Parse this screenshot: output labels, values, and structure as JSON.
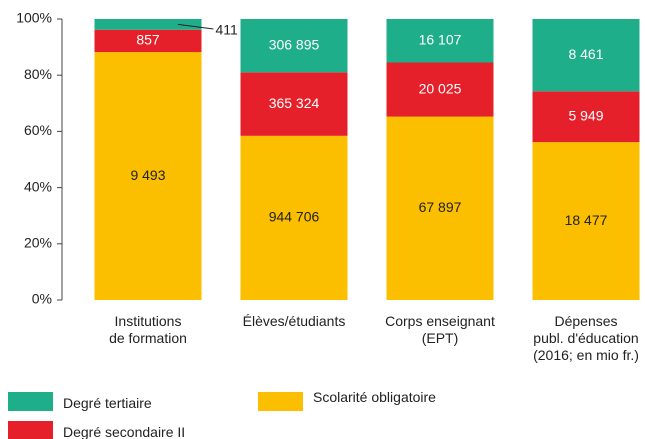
{
  "chart_data": {
    "type": "bar",
    "stacked": "percent",
    "categories": [
      "Institutions\nde formation",
      "Élèves/étudiants",
      "Corps enseignant\n(EPT)",
      "Dépenses\npubl. d'éducation\n(2016; en mio fr.)"
    ],
    "series": [
      {
        "name": "Scolarité obligatoire",
        "color": "#fbbf00",
        "values": [
          9493,
          944706,
          67897,
          18477
        ],
        "value_labels": [
          "9 493",
          "944 706",
          "67 897",
          "18 477"
        ]
      },
      {
        "name": "Degré secondaire II",
        "color": "#e5202a",
        "values": [
          857,
          365324,
          20025,
          5949
        ],
        "value_labels": [
          "857",
          "365 324",
          "20 025",
          "5 949"
        ]
      },
      {
        "name": "Degré tertiaire",
        "color": "#1fae8a",
        "values": [
          411,
          306895,
          16107,
          8461
        ],
        "value_labels": [
          "411",
          "306 895",
          "16 107",
          "8 461"
        ]
      }
    ],
    "ylim": [
      0,
      100
    ],
    "yticks": [
      {
        "value": 0,
        "label": "0%"
      },
      {
        "value": 20,
        "label": "20%"
      },
      {
        "value": 40,
        "label": "40%"
      },
      {
        "value": 60,
        "label": "60%"
      },
      {
        "value": 80,
        "label": "80%"
      },
      {
        "value": 100,
        "label": "100%"
      }
    ]
  }
}
